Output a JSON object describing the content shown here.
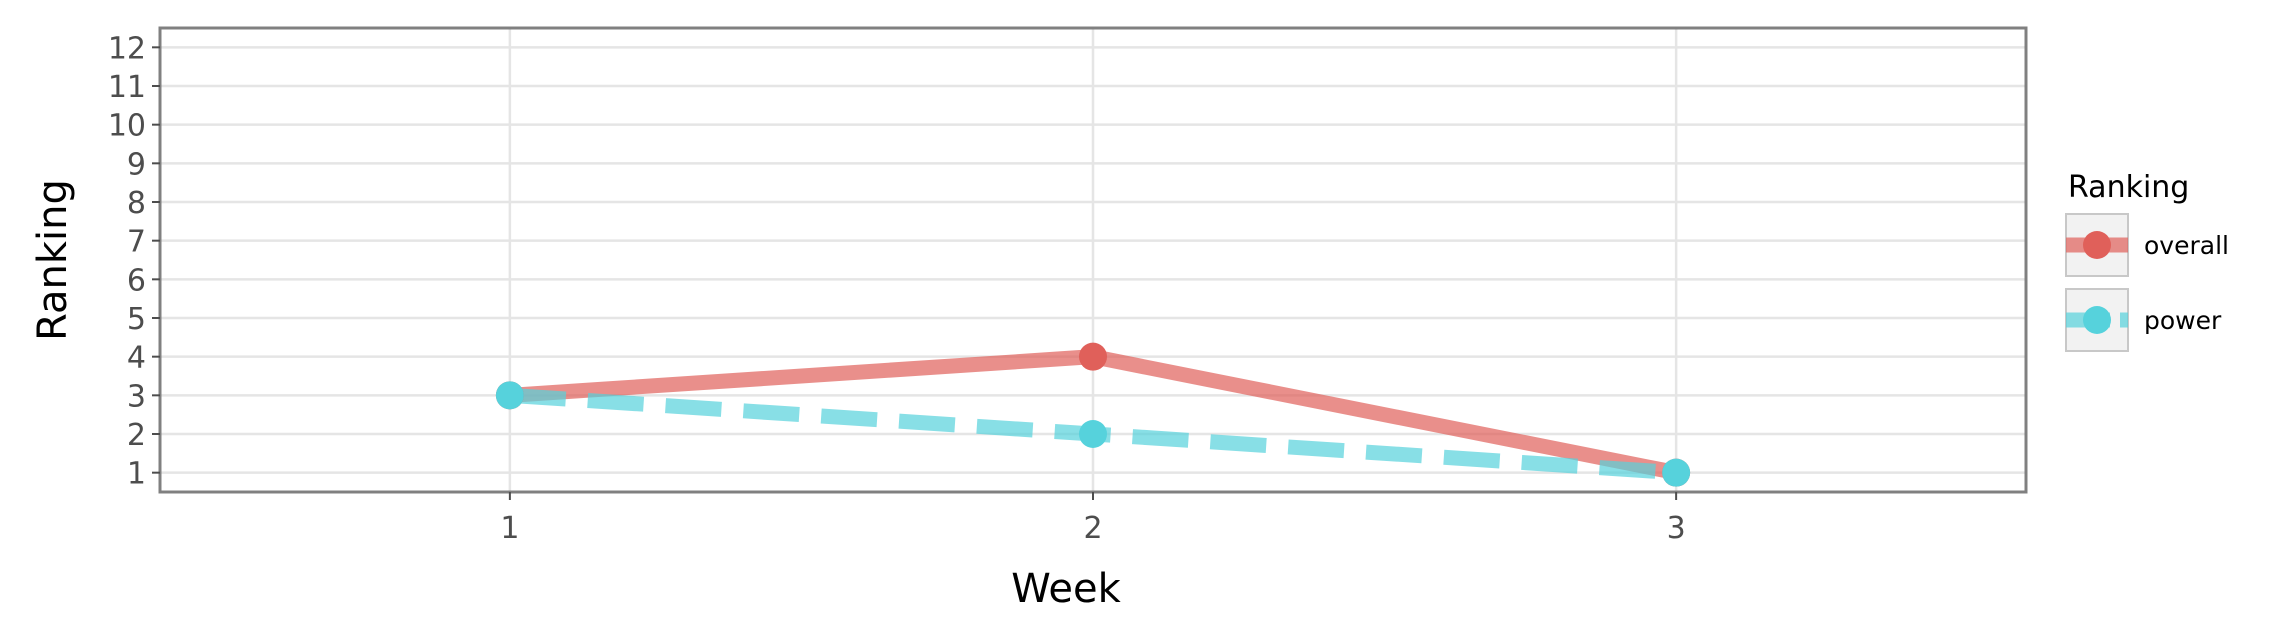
{
  "chart_data": {
    "type": "line",
    "title": "",
    "xlabel": "Week",
    "ylabel": "Ranking",
    "x": [
      1,
      2,
      3
    ],
    "x_ticks": [
      "1",
      "2",
      "3"
    ],
    "xlim": [
      0.4,
      3.6
    ],
    "y_ticks": [
      "1",
      "2",
      "3",
      "4",
      "5",
      "6",
      "7",
      "8",
      "9",
      "10",
      "11",
      "12"
    ],
    "ylim": [
      12.5,
      0.5
    ],
    "y_reversed": true,
    "grid": true,
    "legend": {
      "title": "Ranking",
      "position": "right"
    },
    "series": [
      {
        "name": "overall",
        "values": [
          3,
          4,
          1
        ],
        "color": "#e0605a",
        "line_style": "solid"
      },
      {
        "name": "power",
        "values": [
          3,
          2,
          1
        ],
        "color": "#56d2dc",
        "line_style": "dashed"
      }
    ]
  }
}
